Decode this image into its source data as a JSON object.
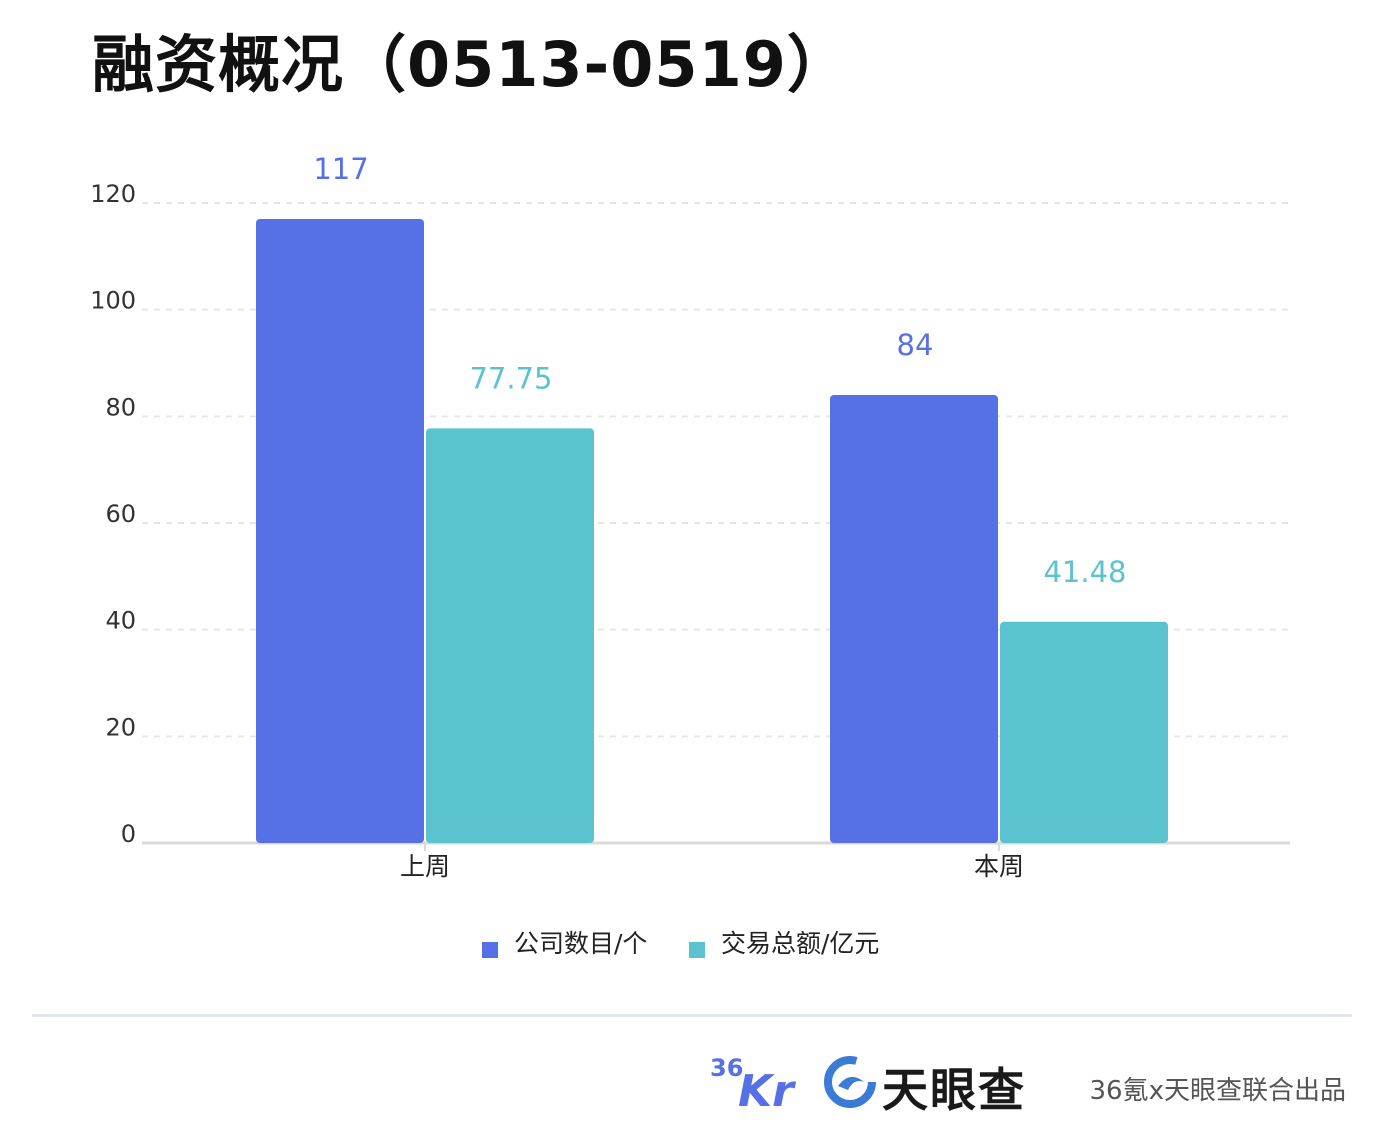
{
  "title": "融资概况（0513-0519）",
  "colors": {
    "series1": "#5670e6",
    "series2": "#5bc3d0",
    "grid": "#e6e6e6",
    "axis": "#d9d9d9"
  },
  "chart_data": {
    "type": "bar",
    "categories": [
      "上周",
      "本周"
    ],
    "series": [
      {
        "name": "公司数目/个",
        "values": [
          117,
          84
        ]
      },
      {
        "name": "交易总额/亿元",
        "values": [
          77.75,
          41.48
        ]
      }
    ],
    "y_ticks": [
      "0",
      "20",
      "40",
      "60",
      "80",
      "100",
      "120"
    ],
    "ylim": [
      0,
      120
    ],
    "grid": true,
    "legend_position": "bottom-center"
  },
  "footer": {
    "logo_36kr": "36Kr",
    "logo_tianyancha": "天眼查",
    "credit": "36氪x天眼查联合出品"
  }
}
